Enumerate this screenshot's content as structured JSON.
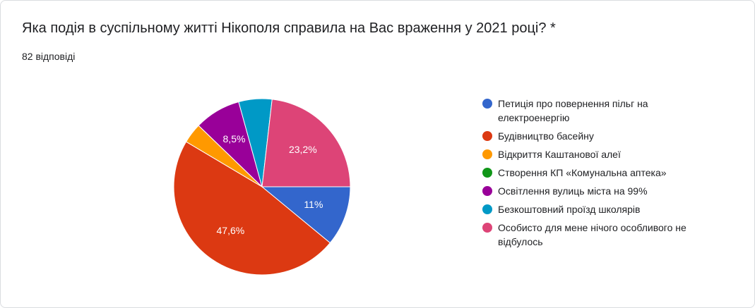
{
  "chart_data": {
    "type": "pie",
    "title": "Яка подія в суспільному житті Нікополя справила на Вас враження у 2021 році? *",
    "subtitle": "82 відповіді",
    "categories": [
      "Петиція про повернення пільг на електроенергію",
      "Будівництво басейну",
      "Відкриття Каштанової алеї",
      "Створення КП «Комунальна аптека»",
      "Освітлення вулиць міста на 99%",
      "Безкоштовний проїзд школярів",
      "Особисто для мене нічого особливого не відбулось"
    ],
    "values": [
      11,
      47.6,
      3.7,
      0,
      8.5,
      6.1,
      23.2
    ],
    "value_labels": [
      "11%",
      "47,6%",
      null,
      null,
      "8,5%",
      null,
      "23,2%"
    ],
    "colors": [
      "#3366cc",
      "#dc3912",
      "#ff9900",
      "#109618",
      "#990099",
      "#0099c6",
      "#dd4477"
    ]
  }
}
